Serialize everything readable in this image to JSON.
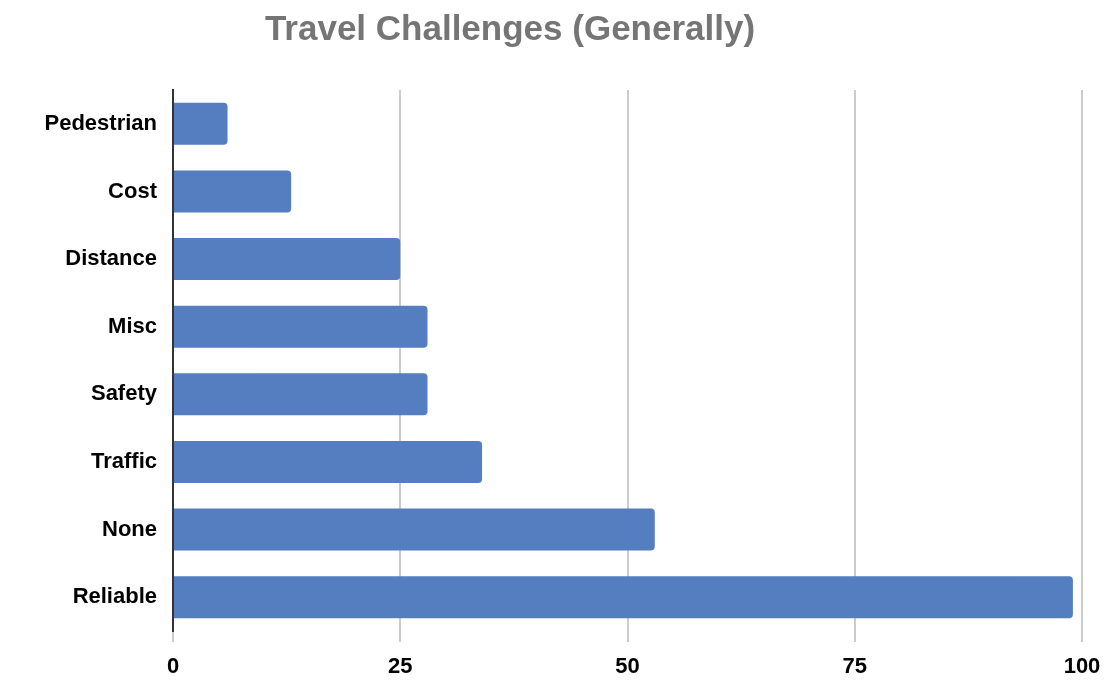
{
  "chart_data": {
    "type": "bar",
    "title": "Travel Challenges (Generally)",
    "orientation": "horizontal",
    "categories": [
      "Pedestrian",
      "Cost",
      "Distance",
      "Misc",
      "Safety",
      "Traffic",
      "None",
      "Reliable"
    ],
    "values": [
      6,
      13,
      25,
      28,
      28,
      34,
      53,
      99
    ],
    "color": "#547ec0",
    "xlim": [
      0,
      100
    ],
    "xticks": [
      0,
      25,
      50,
      75,
      100
    ],
    "grid": "x",
    "legend": false
  }
}
